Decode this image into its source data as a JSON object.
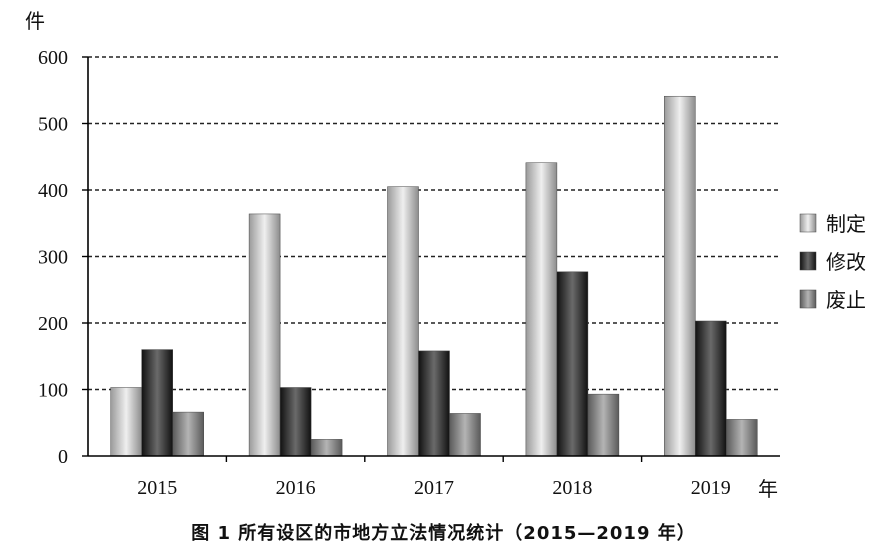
{
  "chart_data": {
    "type": "bar",
    "title": "",
    "ylabel": "件",
    "xlabel": "年",
    "ylim": [
      0,
      600
    ],
    "yticks": [
      0,
      100,
      200,
      300,
      400,
      500,
      600
    ],
    "grid": true,
    "legend_position": "right",
    "categories": [
      "2015",
      "2016",
      "2017",
      "2018",
      "2019"
    ],
    "series": [
      {
        "name": "制定",
        "values": [
          103,
          364,
          405,
          441,
          541
        ],
        "color": "#c0c0c0"
      },
      {
        "name": "修改",
        "values": [
          160,
          103,
          158,
          277,
          203
        ],
        "color": "#333333"
      },
      {
        "name": "废止",
        "values": [
          66,
          25,
          64,
          93,
          55
        ],
        "color": "#8a8a8a"
      }
    ]
  },
  "caption": "图 1  所有设区的市地方立法情况统计（2015—2019 年）"
}
